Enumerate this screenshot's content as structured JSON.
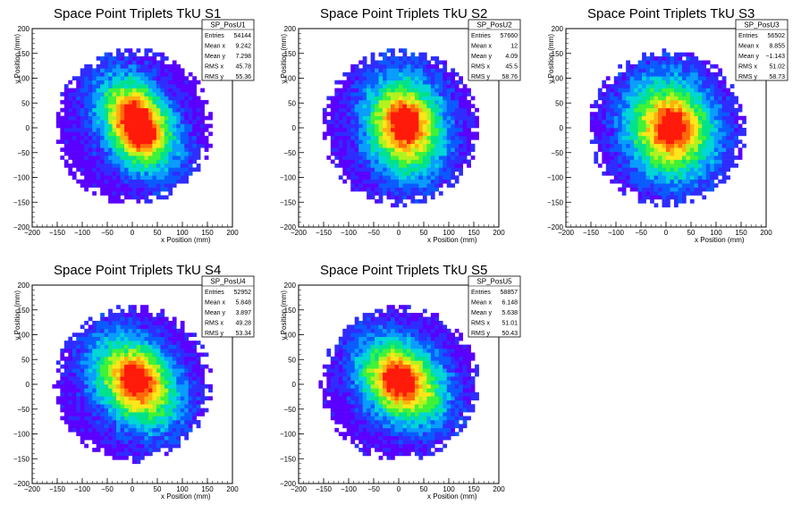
{
  "chart_data": [
    {
      "type": "heatmap",
      "title": "Space Point Triplets TkU S1",
      "xlabel": "x Position (mm)",
      "ylabel": "y Position (mm)",
      "xlim": [
        -200,
        200
      ],
      "ylim": [
        -200,
        200
      ],
      "xticks": [
        "−200",
        "−150",
        "−100",
        "−50",
        "0",
        "50",
        "100",
        "150",
        "200"
      ],
      "yticks": [
        "−200",
        "−150",
        "−100",
        "−50",
        "0",
        "50",
        "100",
        "150",
        "200"
      ],
      "stats": {
        "name": "SP_PosU1",
        "rows": [
          {
            "label": "Entries",
            "value": "54144"
          },
          {
            "label": "Mean x",
            "value": "9.242"
          },
          {
            "label": "Mean y",
            "value": "7.298"
          },
          {
            "label": "RMS x",
            "value": "45.78"
          },
          {
            "label": "RMS y",
            "value": "55.36"
          }
        ]
      },
      "model": {
        "cx": 9.242,
        "cy": 7.298,
        "sx": 45.78,
        "sy": 55.36,
        "rho": -0.35,
        "r": 158,
        "peaks": [
          [
            5,
            25
          ],
          [
            20,
            -15
          ]
        ]
      }
    },
    {
      "type": "heatmap",
      "title": "Space Point Triplets TkU S2",
      "xlabel": "x Position (mm)",
      "ylabel": "y Position (mm)",
      "xlim": [
        -200,
        200
      ],
      "ylim": [
        -200,
        200
      ],
      "xticks": [
        "−200",
        "−150",
        "−100",
        "−50",
        "0",
        "50",
        "100",
        "150",
        "200"
      ],
      "yticks": [
        "−200",
        "−150",
        "−100",
        "−50",
        "0",
        "50",
        "100",
        "150",
        "200"
      ],
      "stats": {
        "name": "SP_PosU2",
        "rows": [
          {
            "label": "Entries",
            "value": "57660"
          },
          {
            "label": "Mean x",
            "value": "12"
          },
          {
            "label": "Mean y",
            "value": "4.09"
          },
          {
            "label": "RMS x",
            "value": "45.5"
          },
          {
            "label": "RMS y",
            "value": "58.76"
          }
        ]
      },
      "model": {
        "cx": 12,
        "cy": 4.09,
        "sx": 45.5,
        "sy": 58.76,
        "rho": -0.1,
        "r": 158,
        "peaks": [
          [
            10,
            10
          ]
        ]
      }
    },
    {
      "type": "heatmap",
      "title": "Space Point Triplets TkU S3",
      "xlabel": "x Position (mm)",
      "ylabel": "y Position (mm)",
      "xlim": [
        -200,
        200
      ],
      "ylim": [
        -200,
        200
      ],
      "xticks": [
        "−200",
        "−150",
        "−100",
        "−50",
        "0",
        "50",
        "100",
        "150",
        "200"
      ],
      "yticks": [
        "−200",
        "−150",
        "−100",
        "−50",
        "0",
        "50",
        "100",
        "150",
        "200"
      ],
      "stats": {
        "name": "SP_PosU3",
        "rows": [
          {
            "label": "Entries",
            "value": "56502"
          },
          {
            "label": "Mean x",
            "value": "8.855"
          },
          {
            "label": "Mean y",
            "value": "−1.143"
          },
          {
            "label": "RMS x",
            "value": "51.02"
          },
          {
            "label": "RMS y",
            "value": "58.73"
          }
        ]
      },
      "model": {
        "cx": 8.855,
        "cy": -1.143,
        "sx": 51.02,
        "sy": 58.73,
        "rho": -0.1,
        "r": 158,
        "peaks": [
          [
            15,
            0
          ]
        ]
      }
    },
    {
      "type": "heatmap",
      "title": "Space Point Triplets TkU S4",
      "xlabel": "x Position (mm)",
      "ylabel": "y Position (mm)",
      "xlim": [
        -200,
        200
      ],
      "ylim": [
        -200,
        200
      ],
      "xticks": [
        "−200",
        "−150",
        "−100",
        "−50",
        "0",
        "50",
        "100",
        "150",
        "200"
      ],
      "yticks": [
        "−200",
        "−150",
        "−100",
        "−50",
        "0",
        "50",
        "100",
        "150",
        "200"
      ],
      "stats": {
        "name": "SP_PosU4",
        "rows": [
          {
            "label": "Entries",
            "value": "52952"
          },
          {
            "label": "Mean x",
            "value": "5.848"
          },
          {
            "label": "Mean y",
            "value": "3.897"
          },
          {
            "label": "RMS x",
            "value": "49.28"
          },
          {
            "label": "RMS y",
            "value": "53.34"
          }
        ]
      },
      "model": {
        "cx": 5.848,
        "cy": 3.897,
        "sx": 49.28,
        "sy": 53.34,
        "rho": -0.3,
        "r": 158,
        "peaks": [
          [
            10,
            10
          ]
        ]
      }
    },
    {
      "type": "heatmap",
      "title": "Space Point Triplets TkU S5",
      "xlabel": "x Position (mm)",
      "ylabel": "y Position (mm)",
      "xlim": [
        -200,
        200
      ],
      "ylim": [
        -200,
        200
      ],
      "xticks": [
        "−200",
        "−150",
        "−100",
        "−50",
        "0",
        "50",
        "100",
        "150",
        "200"
      ],
      "yticks": [
        "−200",
        "−150",
        "−100",
        "−50",
        "0",
        "50",
        "100",
        "150",
        "200"
      ],
      "stats": {
        "name": "SP_PosU5",
        "rows": [
          {
            "label": "Entries",
            "value": "58857"
          },
          {
            "label": "Mean x",
            "value": "6.148"
          },
          {
            "label": "Mean y",
            "value": "5.638"
          },
          {
            "label": "RMS x",
            "value": "51.01"
          },
          {
            "label": "RMS y",
            "value": "50.43"
          }
        ]
      },
      "model": {
        "cx": 6.148,
        "cy": 5.638,
        "sx": 51.01,
        "sy": 50.43,
        "rho": -0.3,
        "r": 158,
        "peaks": [
          [
            0,
            10
          ]
        ]
      }
    }
  ],
  "colors": {
    "frame": "#000000",
    "palette": [
      "#5a00ff",
      "#2f2cff",
      "#0a5bff",
      "#0a9cff",
      "#00d6d6",
      "#00e28a",
      "#3ff238",
      "#b2f21e",
      "#ffe61a",
      "#ffb00f",
      "#ff6a0a",
      "#ff1a0a"
    ]
  }
}
